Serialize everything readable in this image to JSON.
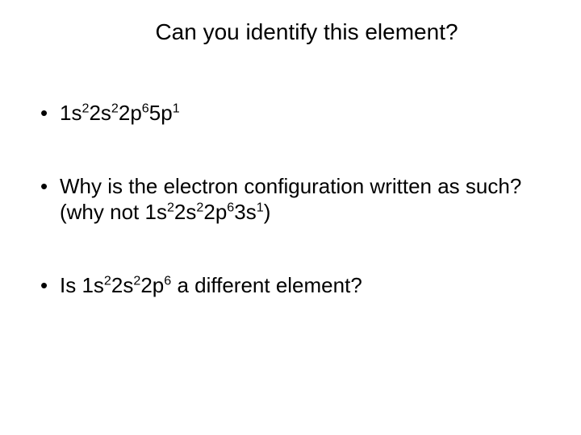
{
  "slide": {
    "title": "Can you identify this element?",
    "background_color": "#ffffff",
    "text_color": "#000000",
    "title_fontsize": 28,
    "body_fontsize": 26,
    "font_family": "Arial",
    "bullets": [
      {
        "segments": [
          {
            "t": "1s"
          },
          {
            "t": "2",
            "sup": true
          },
          {
            "t": "2s"
          },
          {
            "t": "2",
            "sup": true
          },
          {
            "t": "2p"
          },
          {
            "t": "6",
            "sup": true
          },
          {
            "t": "5p"
          },
          {
            "t": "1",
            "sup": true
          }
        ]
      },
      {
        "segments": [
          {
            "t": "Why is the electron configuration written as such? (why not 1s"
          },
          {
            "t": "2",
            "sup": true
          },
          {
            "t": "2s"
          },
          {
            "t": "2",
            "sup": true
          },
          {
            "t": "2p"
          },
          {
            "t": "6",
            "sup": true
          },
          {
            "t": "3s"
          },
          {
            "t": "1",
            "sup": true
          },
          {
            "t": ")"
          }
        ]
      },
      {
        "segments": [
          {
            "t": "Is 1s"
          },
          {
            "t": "2",
            "sup": true
          },
          {
            "t": "2s"
          },
          {
            "t": "2",
            "sup": true
          },
          {
            "t": "2p"
          },
          {
            "t": "6",
            "sup": true
          },
          {
            "t": " a different element?"
          }
        ]
      }
    ]
  }
}
